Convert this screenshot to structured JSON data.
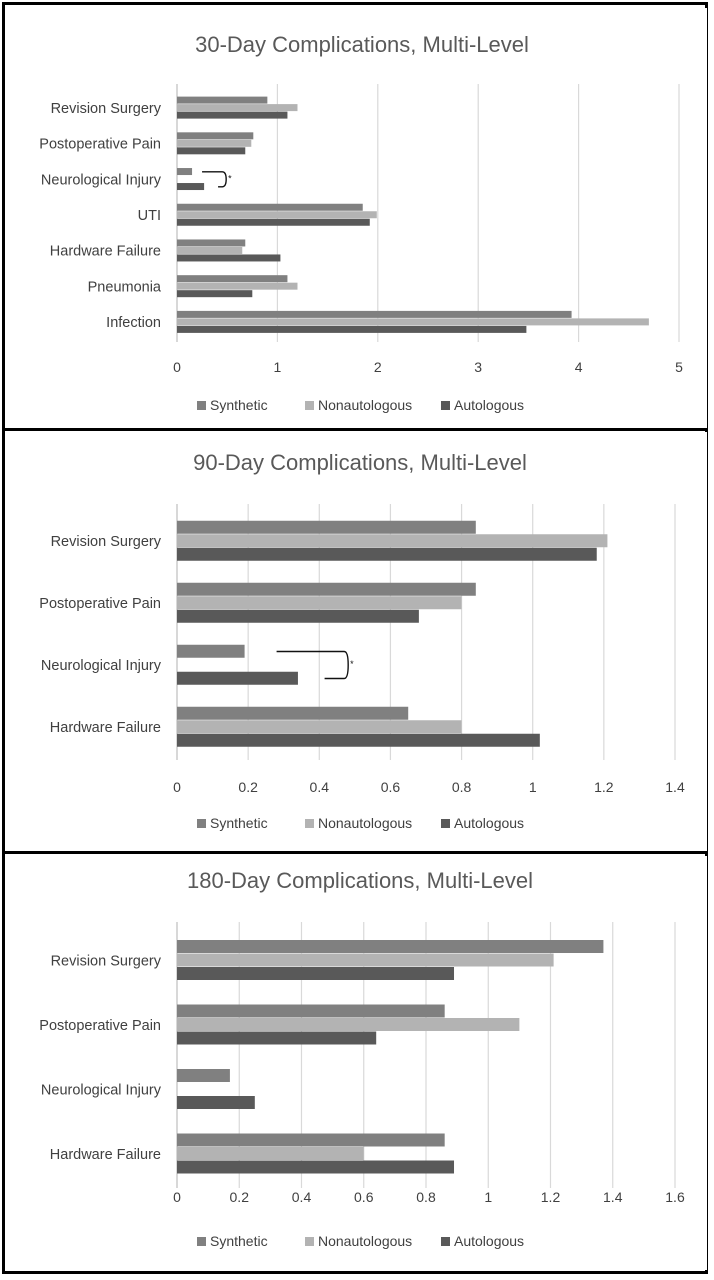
{
  "colors": {
    "synthetic": "#808080",
    "nonautologous": "#b3b3b3",
    "autologous": "#595959"
  },
  "chart_data": [
    {
      "type": "bar",
      "orientation": "horizontal",
      "title": "30-Day Complications, Multi-Level",
      "categories": [
        "Revision Surgery",
        "Postoperative Pain",
        "Neurological Injury",
        "UTI",
        "Hardware Failure",
        "Pneumonia",
        "Infection"
      ],
      "series": [
        {
          "name": "Synthetic",
          "values": [
            0.9,
            0.76,
            0.15,
            1.85,
            0.68,
            1.1,
            3.93
          ]
        },
        {
          "name": "Nonautologous",
          "values": [
            1.2,
            0.74,
            0,
            1.99,
            0.65,
            1.2,
            4.7
          ]
        },
        {
          "name": "Autologous",
          "values": [
            1.1,
            0.68,
            0.27,
            1.92,
            1.03,
            0.75,
            3.48
          ]
        }
      ],
      "xlim": [
        0,
        5
      ],
      "xticks": [
        "0",
        "1",
        "2",
        "3",
        "4",
        "5"
      ],
      "xtick_values": [
        0,
        1,
        2,
        3,
        4,
        5
      ],
      "grid": true,
      "legend": "bottom",
      "significance": [
        {
          "category": "Neurological Injury",
          "label": "*"
        }
      ]
    },
    {
      "type": "bar",
      "orientation": "horizontal",
      "title": "90-Day Complications, Multi-Level",
      "categories": [
        "Revision Surgery",
        "Postoperative Pain",
        "Neurological Injury",
        "Hardware Failure"
      ],
      "series": [
        {
          "name": "Synthetic",
          "values": [
            0.84,
            0.84,
            0.19,
            0.65
          ]
        },
        {
          "name": "Nonautologous",
          "values": [
            1.21,
            0.8,
            0,
            0.8
          ]
        },
        {
          "name": "Autologous",
          "values": [
            1.18,
            0.68,
            0.34,
            1.02
          ]
        }
      ],
      "xlim": [
        0,
        1.4
      ],
      "xticks": [
        "0",
        "0.2",
        "0.4",
        "0.6",
        "0.8",
        "1",
        "1.2",
        "1.4"
      ],
      "xtick_values": [
        0,
        0.2,
        0.4,
        0.6,
        0.8,
        1,
        1.2,
        1.4
      ],
      "grid": true,
      "legend": "bottom",
      "significance": [
        {
          "category": "Neurological Injury",
          "label": "*"
        }
      ]
    },
    {
      "type": "bar",
      "orientation": "horizontal",
      "title": "180-Day Complications, Multi-Level",
      "categories": [
        "Revision Surgery",
        "Postoperative Pain",
        "Neurological Injury",
        "Hardware Failure"
      ],
      "series": [
        {
          "name": "Synthetic",
          "values": [
            1.37,
            0.86,
            0.17,
            0.86
          ]
        },
        {
          "name": "Nonautologous",
          "values": [
            1.21,
            1.1,
            0,
            0.6
          ]
        },
        {
          "name": "Autologous",
          "values": [
            0.89,
            0.64,
            0.25,
            0.89
          ]
        }
      ],
      "xlim": [
        0,
        1.6
      ],
      "xticks": [
        "0",
        "0.2",
        "0.4",
        "0.6",
        "0.8",
        "1",
        "1.2",
        "1.4",
        "1.6"
      ],
      "xtick_values": [
        0,
        0.2,
        0.4,
        0.6,
        0.8,
        1,
        1.2,
        1.4,
        1.6
      ],
      "grid": true,
      "legend": "bottom"
    }
  ]
}
